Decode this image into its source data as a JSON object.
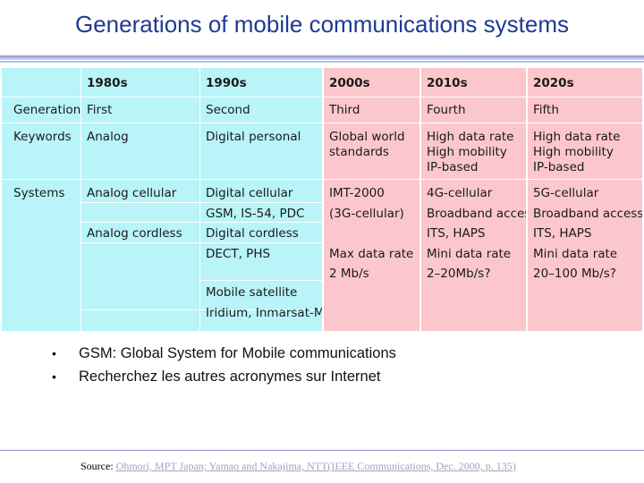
{
  "title": "Generations of mobile communications systems",
  "table": {
    "decades": [
      "1980s",
      "1990s",
      "2000s",
      "2010s",
      "2020s"
    ],
    "rows": {
      "generation": {
        "label": "Generation",
        "values": [
          "First",
          "Second",
          "Third",
          "Fourth",
          "Fifth"
        ]
      },
      "keywords": {
        "label": "Keywords",
        "c1980": [
          "Analog"
        ],
        "c1990": [
          "Digital personal"
        ],
        "c2000": [
          "Global world",
          "standards"
        ],
        "c2010": [
          "High data rate",
          "High mobility",
          "IP-based"
        ],
        "c2020": [
          "High data rate",
          "High mobility",
          "IP-based"
        ]
      },
      "systems": {
        "label": "Systems",
        "c1980": [
          "Analog cellular",
          "Analog cordless"
        ],
        "c1990": [
          "Digital cellular",
          "GSM, IS-54, PDC",
          "Digital cordless",
          "DECT, PHS",
          "Mobile satellite",
          "Iridium, Inmarsat-M"
        ],
        "c2000": [
          "IMT-2000",
          "(3G-cellular)",
          "Max data rate",
          "2 Mb/s"
        ],
        "c2010": [
          "4G-cellular",
          "Broadband access",
          "ITS, HAPS",
          "Mini data rate",
          "2–20Mb/s?"
        ],
        "c2020": [
          "5G-cellular",
          "Broadband access",
          "ITS, HAPS",
          "Mini data rate",
          "20–100 Mb/s?"
        ]
      }
    }
  },
  "bullets": [
    "GSM: Global System for Mobile communications",
    "Recherchez les autres acronymes sur Internet"
  ],
  "source": {
    "prefix": "Source: ",
    "link_text": "Ohmori, MPT Japan; Yamao and Nakajima, NTT(IEEE Communications, Dec. 2000, p. 135)"
  },
  "colors": {
    "title": "#1f3a93",
    "cyan": "#b8f4f8",
    "pink": "#fcc7cc"
  }
}
